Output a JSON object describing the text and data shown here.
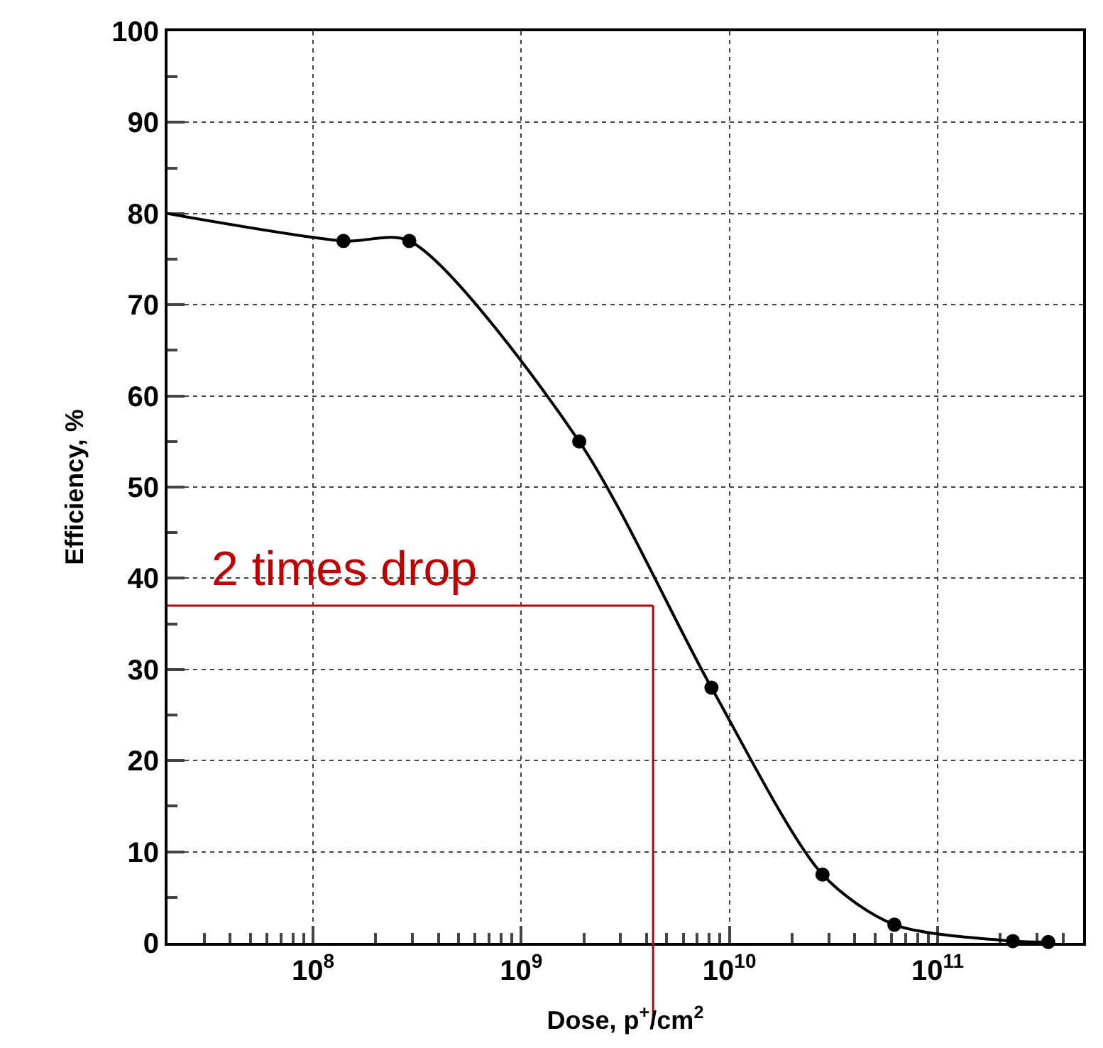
{
  "chart_data": {
    "type": "line",
    "xlabel": "Dose, p$^{+}$/cm$^{2}$",
    "ylabel": "Efficiency, %",
    "x": [
      20000000.0,
      140000000.0,
      290000000.0,
      1900000000.0,
      8200000000.0,
      28000000000.0,
      62000000000.0,
      230000000000.0,
      340000000000.0
    ],
    "series": [
      {
        "color": "#000000",
        "values": [
          80,
          77,
          77,
          55,
          28,
          7.5,
          2,
          0.2,
          0.1
        ]
      }
    ],
    "log": "x",
    "marker": "circle",
    "line_style": "solid",
    "grid": true,
    "xlim": [
      20000000.0,
      500000000000.0
    ],
    "xticks": [
      {
        "value": 100000000.0,
        "label": "10$^{8}$"
      },
      {
        "value": 1000000000.0,
        "label": "10$^{9}$"
      },
      {
        "value": 10000000000.0,
        "label": "10$^{10}$"
      },
      {
        "value": 100000000000.0,
        "label": "10$^{11}$"
      }
    ],
    "ylim": [
      0,
      100
    ],
    "yticks": [
      0,
      10,
      20,
      30,
      40,
      50,
      60,
      70,
      80,
      90,
      100
    ],
    "ref_lines": [
      {
        "axis": "y",
        "value": 37,
        "label": "2 times drop",
        "color": "#c00000"
      },
      {
        "axis": "x",
        "value": 4300000000.0,
        "color": "#c00000"
      }
    ]
  }
}
